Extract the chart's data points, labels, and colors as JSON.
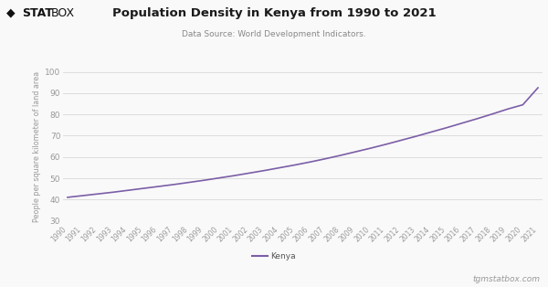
{
  "title": "Population Density in Kenya from 1990 to 2021",
  "subtitle": "Data Source: World Development Indicators.",
  "ylabel": "People per square kilometer of land area",
  "line_color": "#7B5EA7",
  "background_color": "#f9f9f9",
  "grid_color": "#dddddd",
  "legend_label": "Kenya",
  "watermark": "tgmstatbox.com",
  "ylim": [
    30,
    100
  ],
  "yticks": [
    30,
    40,
    50,
    60,
    70,
    80,
    90,
    100
  ],
  "years": [
    1990,
    1991,
    1992,
    1993,
    1994,
    1995,
    1996,
    1997,
    1998,
    1999,
    2000,
    2001,
    2002,
    2003,
    2004,
    2005,
    2006,
    2007,
    2008,
    2009,
    2010,
    2011,
    2012,
    2013,
    2014,
    2015,
    2016,
    2017,
    2018,
    2019,
    2020,
    2021
  ],
  "values": [
    41.1,
    41.9,
    42.7,
    43.5,
    44.4,
    45.3,
    46.2,
    47.1,
    48.1,
    49.1,
    50.2,
    51.3,
    52.5,
    53.7,
    55.0,
    56.3,
    57.7,
    59.2,
    60.8,
    62.5,
    64.2,
    66.0,
    67.9,
    69.8,
    71.8,
    73.8,
    75.9,
    78.0,
    80.2,
    82.5,
    84.5,
    92.5
  ]
}
